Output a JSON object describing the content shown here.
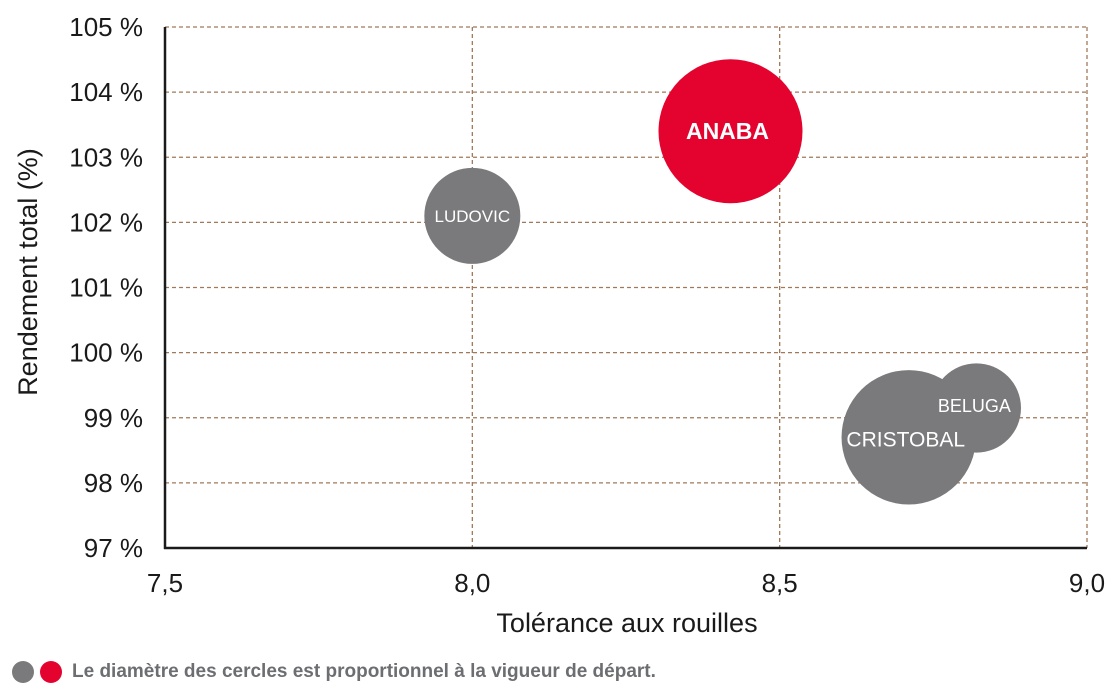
{
  "chart_data": {
    "type": "scatter",
    "subtype": "bubble",
    "xlabel": "Tolérance aux rouilles",
    "ylabel": "Rendement total (%)",
    "xlim": [
      7.5,
      9.0
    ],
    "ylim": [
      97,
      105
    ],
    "x_ticks": [
      "7,5",
      "8,0",
      "8,5",
      "9,0"
    ],
    "y_ticks": [
      "97 %",
      "98 %",
      "99 %",
      "100 %",
      "101 %",
      "102 %",
      "103 %",
      "104 %",
      "105 %"
    ],
    "grid": true,
    "grid_color": "#a0785a",
    "points": [
      {
        "label": "LUDOVIC",
        "x": 8.0,
        "y": 102.1,
        "size": 1.0,
        "color": "#7a797b"
      },
      {
        "label": "ANABA",
        "x": 8.42,
        "y": 103.4,
        "size": 1.5,
        "color": "#e4032e"
      },
      {
        "label": "BELUGA",
        "x": 8.82,
        "y": 99.15,
        "size": 0.93,
        "color": "#7a797b"
      },
      {
        "label": "CRISTOBAL",
        "x": 8.71,
        "y": 98.7,
        "size": 1.4,
        "color": "#7a797b"
      }
    ]
  },
  "footnote": {
    "text": "Le diamètre des cercles est proportionnel à la vigueur de départ.",
    "dot_colors": [
      "#7a797b",
      "#e4032e"
    ]
  }
}
